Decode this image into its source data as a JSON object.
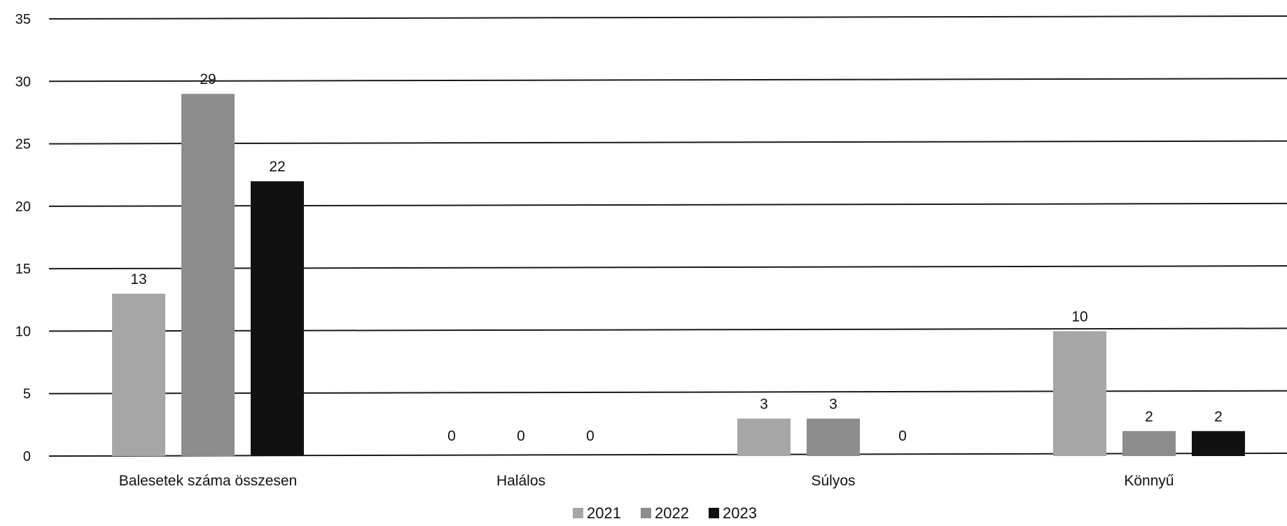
{
  "chart_data": {
    "type": "bar",
    "categories": [
      "Balesetek száma összesen",
      "Halálos",
      "Súlyos",
      "Könnyű"
    ],
    "series": [
      {
        "name": "2021",
        "values": [
          13,
          0,
          3,
          10
        ],
        "labels": [
          "13",
          "0",
          "3",
          "10"
        ],
        "color": "#a6a6a6"
      },
      {
        "name": "2022",
        "values": [
          29,
          0,
          3,
          2
        ],
        "labels": [
          "29",
          "0",
          "3",
          "2"
        ],
        "color": "#8c8c8c"
      },
      {
        "name": "2023",
        "values": [
          22,
          0,
          0,
          2
        ],
        "labels": [
          "22",
          "0",
          "0",
          "2"
        ],
        "color": "#111111"
      }
    ],
    "y_ticks": [
      "0",
      "5",
      "10",
      "15",
      "20",
      "25",
      "30",
      "35"
    ],
    "ylim": [
      0,
      35
    ],
    "grid": true,
    "legend_position": "bottom",
    "title": "",
    "xlabel": "",
    "ylabel": ""
  }
}
